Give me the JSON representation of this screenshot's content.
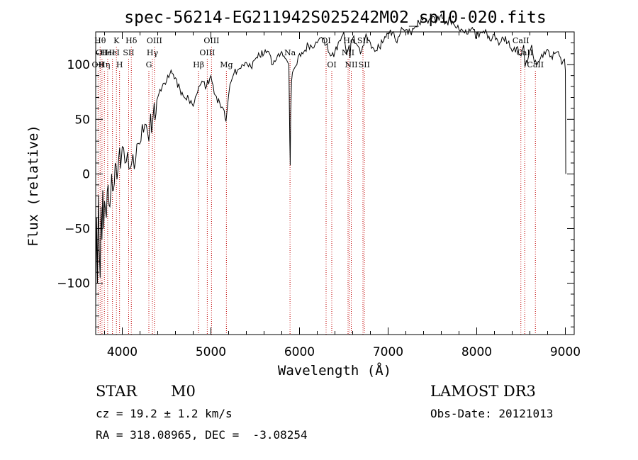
{
  "chart_data": {
    "type": "line",
    "title": "spec-56214-EG211942S025242M02_sp10-020.fits",
    "xlabel": "Wavelength (Å)",
    "ylabel": "Flux (relative)",
    "xlim": [
      3700,
      9100
    ],
    "ylim": [
      -147,
      130
    ],
    "xticks": [
      4000,
      5000,
      6000,
      7000,
      8000,
      9000
    ],
    "yticks": [
      -100,
      -50,
      0,
      50,
      100
    ],
    "series": [
      {
        "name": "spectrum",
        "x": [
          3700,
          3710,
          3720,
          3730,
          3740,
          3750,
          3760,
          3770,
          3780,
          3790,
          3800,
          3820,
          3840,
          3860,
          3880,
          3900,
          3920,
          3940,
          3960,
          3980,
          4000,
          4030,
          4060,
          4090,
          4120,
          4150,
          4180,
          4210,
          4240,
          4270,
          4300,
          4320,
          4340,
          4360,
          4380,
          4400,
          4450,
          4500,
          4550,
          4600,
          4650,
          4700,
          4750,
          4800,
          4850,
          4900,
          4950,
          5000,
          5050,
          5100,
          5150,
          5170,
          5185,
          5200,
          5230,
          5260,
          5300,
          5350,
          5400,
          5450,
          5500,
          5550,
          5600,
          5650,
          5700,
          5750,
          5800,
          5850,
          5880,
          5890,
          5895,
          5900,
          5910,
          5930,
          5970,
          6000,
          6050,
          6100,
          6150,
          6200,
          6250,
          6300,
          6350,
          6400,
          6450,
          6500,
          6530,
          6560,
          6570,
          6580,
          6600,
          6650,
          6700,
          6750,
          6800,
          6850,
          6900,
          6950,
          7000,
          7050,
          7100,
          7150,
          7200,
          7250,
          7300,
          7350,
          7400,
          7450,
          7500,
          7550,
          7600,
          7650,
          7700,
          7750,
          7800,
          7850,
          7900,
          7950,
          8000,
          8050,
          8100,
          8150,
          8200,
          8250,
          8300,
          8350,
          8400,
          8450,
          8500,
          8530,
          8545,
          8560,
          8580,
          8620,
          8650,
          8662,
          8680,
          8720,
          8760,
          8800,
          8840,
          8880,
          8920,
          8960,
          8990,
          9000,
          9005
        ],
        "y": [
          -120,
          -40,
          -100,
          -20,
          -70,
          -95,
          -30,
          -60,
          -15,
          -50,
          -25,
          -40,
          -10,
          -30,
          0,
          -15,
          10,
          -5,
          15,
          5,
          25,
          10,
          20,
          5,
          18,
          12,
          28,
          30,
          38,
          45,
          30,
          55,
          45,
          65,
          55,
          70,
          80,
          85,
          95,
          88,
          78,
          70,
          68,
          62,
          75,
          85,
          80,
          90,
          72,
          65,
          58,
          48,
          60,
          72,
          85,
          92,
          95,
          100,
          102,
          98,
          105,
          108,
          110,
          112,
          100,
          108,
          112,
          105,
          100,
          30,
          8,
          55,
          85,
          95,
          100,
          110,
          112,
          118,
          115,
          120,
          125,
          118,
          108,
          112,
          122,
          130,
          110,
          118,
          106,
          120,
          124,
          118,
          112,
          128,
          120,
          112,
          116,
          122,
          128,
          130,
          120,
          134,
          132,
          130,
          134,
          138,
          142,
          138,
          144,
          140,
          146,
          138,
          142,
          136,
          132,
          130,
          128,
          134,
          126,
          130,
          132,
          122,
          128,
          118,
          124,
          120,
          112,
          116,
          108,
          118,
          98,
          104,
          106,
          118,
          102,
          104,
          100,
          106,
          112,
          114,
          108,
          110,
          112,
          100,
          105,
          95,
          0
        ]
      }
    ],
    "lines": [
      {
        "wl": 3727,
        "row": 2,
        "label": "OII"
      },
      {
        "wl": 3750,
        "row": 0,
        "label": "Hθ"
      },
      {
        "wl": 3771,
        "row": 1,
        "label": "OII"
      },
      {
        "wl": 3798,
        "row": 2,
        "label": "Hη"
      },
      {
        "wl": 3835,
        "row": 1,
        "label": "HeI"
      },
      {
        "wl": 3889,
        "row": 1,
        "label": "HeI"
      },
      {
        "wl": 3934,
        "row": 0,
        "label": "K"
      },
      {
        "wl": 3969,
        "row": 2,
        "label": "H"
      },
      {
        "wl": 4072,
        "row": 1,
        "label": "SII"
      },
      {
        "wl": 4102,
        "row": 0,
        "label": "Hδ"
      },
      {
        "wl": 4300,
        "row": 2,
        "label": "G"
      },
      {
        "wl": 4340,
        "row": 1,
        "label": "Hγ"
      },
      {
        "wl": 4363,
        "row": 0,
        "label": "OIII"
      },
      {
        "wl": 4861,
        "row": 2,
        "label": "Hβ"
      },
      {
        "wl": 4959,
        "row": 1,
        "label": "OIII"
      },
      {
        "wl": 5007,
        "row": 0,
        "label": "OIII"
      },
      {
        "wl": 5175,
        "row": 2,
        "label": "Mg"
      },
      {
        "wl": 5893,
        "row": 1,
        "label": "Na"
      },
      {
        "wl": 6300,
        "row": 0,
        "label": "OI"
      },
      {
        "wl": 6364,
        "row": 2,
        "label": "OI"
      },
      {
        "wl": 6548,
        "row": 1,
        "label": "NII"
      },
      {
        "wl": 6563,
        "row": 0,
        "label": "Hα"
      },
      {
        "wl": 6584,
        "row": 2,
        "label": "NII"
      },
      {
        "wl": 6716,
        "row": 0,
        "label": "SII"
      },
      {
        "wl": 6731,
        "row": 2,
        "label": "SII"
      },
      {
        "wl": 8498,
        "row": 0,
        "label": "CaII"
      },
      {
        "wl": 8542,
        "row": 1,
        "label": "CaII"
      },
      {
        "wl": 8662,
        "row": 2,
        "label": "CaII"
      }
    ]
  },
  "info": {
    "object_type": "STAR",
    "subclass": "M0",
    "survey": "LAMOST DR3",
    "redshift": "cz = 19.2 ± 1.2 km/s",
    "obs_date": "Obs-Date: 20121013",
    "coords": "RA = 318.08965, DEC =  -3.08254"
  }
}
